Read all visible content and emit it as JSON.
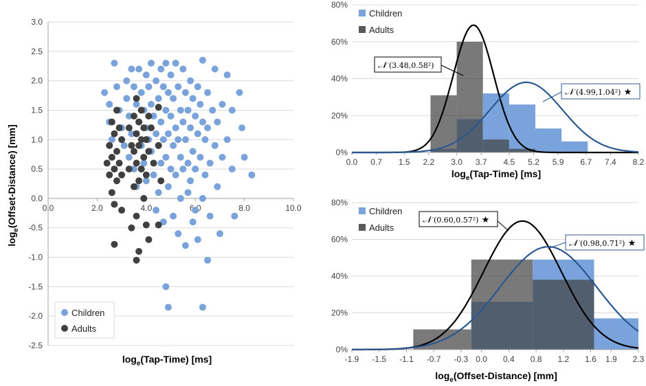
{
  "colors": {
    "children": "#7ba3db",
    "adults": "#404040",
    "overlap": "#3d4f6b",
    "child_curve": "#2b5790",
    "adult_curve": "#000000",
    "grid": "#d9d9d9"
  },
  "scatter": {
    "xlabel_main": "log",
    "xlabel_sub": "e",
    "xlabel_rest": "(Tap-Time) [ms]",
    "ylabel_main": "log",
    "ylabel_sub": "e",
    "ylabel_rest": "(Offset-Distance) [mm]",
    "legend": [
      "Children",
      "Adults"
    ]
  },
  "hist_top": {
    "xlabel_main": "log",
    "xlabel_sub": "e",
    "xlabel_rest": "(Tap-Time) [ms]",
    "legend": [
      "Children",
      "Adults"
    ],
    "adult_annot": {
      "symbol": "𝒩",
      "text": " (3.48,0.58²)",
      "star": ""
    },
    "child_annot": {
      "symbol": "𝒩",
      "text": " (4.99,1.04²)",
      "star": " ★"
    }
  },
  "hist_bottom": {
    "xlabel_main": "log",
    "xlabel_sub": "e",
    "xlabel_rest": "(Offset-Distance) [mm]",
    "legend": [
      "Children",
      "Adults"
    ],
    "adult_annot": {
      "symbol": "𝒩",
      "text": " (0.60,0.57²)",
      "star": " ★"
    },
    "child_annot": {
      "symbol": "𝒩",
      "text": " (0.98,0.71²)",
      "star": " ★"
    }
  },
  "chart_data": [
    {
      "type": "scatter",
      "xlabel": "loge(Tap-Time) [ms]",
      "ylabel": "loge(Offset-Distance) [mm]",
      "xlim": [
        0,
        10
      ],
      "ylim": [
        -2.5,
        3.0
      ],
      "xticks": [
        "0.0",
        "2.0",
        "4.0",
        "6.0",
        "8.0",
        "10.0"
      ],
      "yticks": [
        "-2.5",
        "-2.0",
        "-1.5",
        "-1.0",
        "-0.5",
        "0.0",
        "0.5",
        "1.0",
        "1.5",
        "2.0",
        "2.5",
        "3.0"
      ],
      "legend_position": "bottom-left",
      "grid": "horizontal",
      "series": [
        {
          "name": "Children",
          "color": "#7ba3db",
          "points": [
            [
              2.3,
              1.8
            ],
            [
              2.5,
              1.6
            ],
            [
              2.5,
              1.3
            ],
            [
              2.6,
              1.0
            ],
            [
              2.7,
              2.3
            ],
            [
              2.8,
              1.9
            ],
            [
              2.9,
              1.5
            ],
            [
              3.0,
              1.2
            ],
            [
              3.1,
              0.9
            ],
            [
              3.2,
              1.7
            ],
            [
              3.2,
              2.0
            ],
            [
              3.3,
              1.4
            ],
            [
              3.3,
              0.7
            ],
            [
              3.4,
              2.2
            ],
            [
              3.4,
              1.1
            ],
            [
              3.5,
              0.5
            ],
            [
              3.5,
              1.9
            ],
            [
              3.6,
              1.6
            ],
            [
              3.6,
              0.2
            ],
            [
              3.7,
              2.2
            ],
            [
              3.7,
              1.3
            ],
            [
              3.8,
              0.9
            ],
            [
              3.8,
              1.8
            ],
            [
              3.9,
              1.5
            ],
            [
              3.9,
              0.6
            ],
            [
              4.0,
              2.1
            ],
            [
              4.0,
              1.2
            ],
            [
              4.0,
              0.3
            ],
            [
              4.1,
              1.9
            ],
            [
              4.1,
              1.0
            ],
            [
              4.2,
              2.3
            ],
            [
              4.2,
              1.6
            ],
            [
              4.2,
              0.8
            ],
            [
              4.3,
              1.4
            ],
            [
              4.3,
              0.4
            ],
            [
              4.4,
              2.0
            ],
            [
              4.4,
              1.1
            ],
            [
              4.4,
              -0.2
            ],
            [
              4.5,
              1.7
            ],
            [
              4.5,
              0.9
            ],
            [
              4.5,
              0.1
            ],
            [
              4.6,
              2.2
            ],
            [
              4.6,
              1.3
            ],
            [
              4.6,
              0.6
            ],
            [
              4.7,
              1.9
            ],
            [
              4.7,
              1.0
            ],
            [
              4.7,
              -0.4
            ],
            [
              4.8,
              2.3
            ],
            [
              4.8,
              1.5
            ],
            [
              4.8,
              0.7
            ],
            [
              4.8,
              -1.5
            ],
            [
              4.9,
              1.8
            ],
            [
              4.9,
              1.1
            ],
            [
              4.9,
              0.2
            ],
            [
              4.9,
              -1.85
            ],
            [
              5.0,
              2.1
            ],
            [
              5.0,
              1.4
            ],
            [
              5.0,
              0.5
            ],
            [
              5.1,
              1.7
            ],
            [
              5.1,
              0.9
            ],
            [
              5.1,
              -0.3
            ],
            [
              5.2,
              2.3
            ],
            [
              5.2,
              1.2
            ],
            [
              5.2,
              0.4
            ],
            [
              5.3,
              1.9
            ],
            [
              5.3,
              1.0
            ],
            [
              5.3,
              -0.6
            ],
            [
              5.4,
              1.5
            ],
            [
              5.4,
              0.7
            ],
            [
              5.4,
              0.0
            ],
            [
              5.5,
              2.2
            ],
            [
              5.5,
              1.3
            ],
            [
              5.5,
              0.5
            ],
            [
              5.6,
              1.8
            ],
            [
              5.6,
              1.0
            ],
            [
              5.6,
              -0.8
            ],
            [
              5.7,
              1.5
            ],
            [
              5.7,
              0.6
            ],
            [
              5.7,
              0.1
            ],
            [
              5.8,
              2.0
            ],
            [
              5.8,
              1.2
            ],
            [
              5.8,
              0.3
            ],
            [
              5.9,
              1.7
            ],
            [
              5.9,
              0.8
            ],
            [
              5.9,
              -0.4
            ],
            [
              6.0,
              1.4
            ],
            [
              6.0,
              0.5
            ],
            [
              6.0,
              -0.2
            ],
            [
              6.1,
              1.9
            ],
            [
              6.1,
              1.1
            ],
            [
              6.1,
              -0.7
            ],
            [
              6.2,
              1.6
            ],
            [
              6.2,
              0.7
            ],
            [
              6.3,
              2.35
            ],
            [
              6.3,
              1.3
            ],
            [
              6.3,
              0.0
            ],
            [
              6.3,
              -1.85
            ],
            [
              6.4,
              1.0
            ],
            [
              6.4,
              0.4
            ],
            [
              6.5,
              1.8
            ],
            [
              6.5,
              1.2
            ],
            [
              6.5,
              -1.05
            ],
            [
              6.6,
              0.6
            ],
            [
              6.6,
              -0.3
            ],
            [
              6.7,
              1.5
            ],
            [
              6.8,
              2.2
            ],
            [
              6.8,
              0.9
            ],
            [
              6.9,
              1.3
            ],
            [
              6.9,
              0.2
            ],
            [
              7.0,
              -0.6
            ],
            [
              7.1,
              1.6
            ],
            [
              7.1,
              0.7
            ],
            [
              7.3,
              2.1
            ],
            [
              7.3,
              1.0
            ],
            [
              7.5,
              1.5
            ],
            [
              7.5,
              0.5
            ],
            [
              7.6,
              -0.3
            ],
            [
              7.8,
              1.8
            ],
            [
              7.9,
              1.2
            ],
            [
              8.0,
              0.7
            ],
            [
              8.3,
              0.4
            ]
          ]
        },
        {
          "name": "Adults",
          "color": "#404040",
          "points": [
            [
              2.4,
              0.6
            ],
            [
              2.5,
              0.9
            ],
            [
              2.5,
              0.4
            ],
            [
              2.6,
              1.3
            ],
            [
              2.6,
              0.7
            ],
            [
              2.6,
              0.1
            ],
            [
              2.7,
              1.1
            ],
            [
              2.7,
              0.5
            ],
            [
              2.7,
              -0.1
            ],
            [
              2.7,
              -0.78
            ],
            [
              2.8,
              1.5
            ],
            [
              2.8,
              0.8
            ],
            [
              2.8,
              0.3
            ],
            [
              2.9,
              1.2
            ],
            [
              2.9,
              0.6
            ],
            [
              3.0,
              1.0
            ],
            [
              3.0,
              0.4
            ],
            [
              3.0,
              -0.2
            ],
            [
              3.3,
              1.2
            ],
            [
              3.3,
              0.5
            ],
            [
              3.4,
              0.9
            ],
            [
              3.4,
              -0.5
            ],
            [
              3.5,
              1.4
            ],
            [
              3.5,
              0.8
            ],
            [
              3.5,
              0.2
            ],
            [
              3.6,
              1.7
            ],
            [
              3.6,
              1.1
            ],
            [
              3.6,
              0.6
            ],
            [
              3.6,
              -0.3
            ],
            [
              3.6,
              -1.05
            ],
            [
              3.7,
              1.3
            ],
            [
              3.7,
              0.9
            ],
            [
              3.7,
              0.3
            ],
            [
              3.7,
              -0.9
            ],
            [
              3.8,
              1.5
            ],
            [
              3.8,
              1.0
            ],
            [
              3.8,
              0.5
            ],
            [
              3.9,
              1.2
            ],
            [
              3.9,
              0.7
            ],
            [
              3.9,
              0.0
            ],
            [
              4.0,
              1.0
            ],
            [
              4.0,
              0.4
            ],
            [
              4.0,
              -0.45
            ],
            [
              4.1,
              1.4
            ],
            [
              4.1,
              0.8
            ],
            [
              4.1,
              -0.7
            ],
            [
              4.2,
              1.2
            ],
            [
              4.3,
              0.6
            ],
            [
              4.5,
              1.55
            ],
            [
              4.5,
              0.9
            ],
            [
              4.5,
              -0.45
            ],
            [
              4.6,
              0.3
            ]
          ]
        }
      ]
    },
    {
      "type": "bar",
      "xlabel": "loge(Tap-Time) [ms]",
      "ylim": [
        0,
        80
      ],
      "yticks": [
        "0%",
        "20%",
        "40%",
        "60%",
        "80%"
      ],
      "xlim": [
        0.0,
        8.2
      ],
      "xticks": [
        "0.0",
        "0.7",
        "1.5",
        "2.2",
        "3.0",
        "3.7",
        "4.5",
        "5.2",
        "5.9",
        "6.7",
        "7.4",
        "8.2"
      ],
      "bin_edges": [
        0.0,
        0.75,
        1.5,
        2.25,
        3.0,
        3.75,
        4.5,
        5.25,
        6.0,
        6.75,
        7.5,
        8.2
      ],
      "legend_position": "top-left",
      "series": [
        {
          "name": "Children",
          "values": [
            0,
            0,
            0,
            2,
            18,
            32,
            26,
            13,
            6,
            0,
            0
          ]
        },
        {
          "name": "Adults",
          "values": [
            0,
            0,
            0,
            31,
            60,
            7,
            2,
            0,
            0,
            0,
            0
          ]
        }
      ],
      "curves": [
        {
          "label": "N(3.48,0.58²)",
          "mean": 3.48,
          "sd": 0.58,
          "peak": 69
        },
        {
          "label": "N(4.99,1.04²) ★",
          "mean": 4.99,
          "sd": 1.04,
          "peak": 38
        }
      ]
    },
    {
      "type": "bar",
      "xlabel": "loge(Offset-Distance) [mm]",
      "ylim": [
        0,
        80
      ],
      "yticks": [
        "0%",
        "20%",
        "40%",
        "60%",
        "80%"
      ],
      "xlim": [
        -1.9,
        2.3
      ],
      "xticks": [
        "-1.9",
        "-1.5",
        "-1.1",
        "-0.7",
        "-0.3",
        "0.0",
        "0.4",
        "0.8",
        "1.2",
        "1.6",
        "1.9",
        "2.3"
      ],
      "bin_edges": [
        -1.9,
        -1.0,
        -0.15,
        0.75,
        1.65,
        2.3
      ],
      "legend_position": "top-left",
      "series": [
        {
          "name": "Children",
          "values": [
            0,
            0,
            26,
            49,
            17
          ]
        },
        {
          "name": "Adults",
          "values": [
            0,
            11,
            49,
            38,
            0
          ]
        }
      ],
      "curves": [
        {
          "label": "N(0.60,0.57²) ★",
          "mean": 0.6,
          "sd": 0.57,
          "peak": 70
        },
        {
          "label": "N(0.98,0.71²) ★",
          "mean": 0.98,
          "sd": 0.71,
          "peak": 56
        }
      ]
    }
  ]
}
